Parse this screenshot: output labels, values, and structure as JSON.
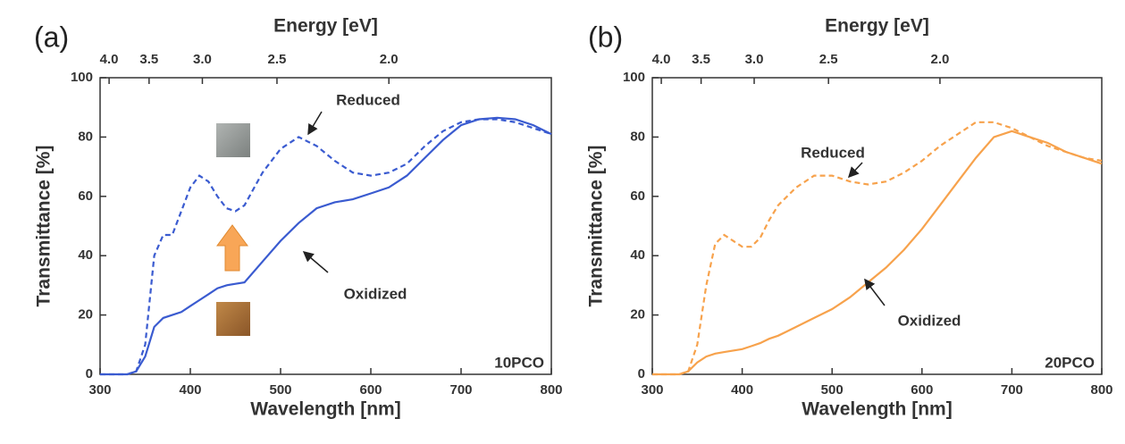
{
  "chart_data": [
    {
      "type": "line",
      "label": "(a)",
      "x_label": "Wavelength [nm]",
      "y_label": "Transmittance [%]",
      "x2_label": "Energy [eV]",
      "sample": "10PCO",
      "xlim": [
        300,
        800
      ],
      "xticks": [
        300,
        400,
        500,
        600,
        700,
        800
      ],
      "ylim": [
        0,
        100
      ],
      "yticks": [
        0,
        20,
        40,
        60,
        80,
        100
      ],
      "x2ticks": [
        {
          "value": 4,
          "label": "4.0"
        },
        3.5,
        {
          "value": 3,
          "label": "3.0"
        },
        2.5,
        {
          "value": 2,
          "label": "2.0"
        }
      ],
      "x": [
        300,
        330,
        340,
        350,
        360,
        370,
        380,
        390,
        400,
        410,
        420,
        430,
        440,
        450,
        460,
        480,
        500,
        520,
        540,
        560,
        580,
        600,
        620,
        640,
        660,
        680,
        700,
        720,
        740,
        760,
        780,
        800
      ],
      "series": [
        {
          "name": "Reduced",
          "color": "#3a5bd0",
          "dash": true,
          "values": [
            0,
            0,
            1,
            10,
            40,
            47,
            47,
            55,
            63,
            67,
            65,
            60,
            56,
            55,
            57,
            68,
            76,
            80,
            77,
            72,
            68,
            67,
            68,
            71,
            77,
            82,
            85,
            86,
            86,
            85,
            83,
            81
          ]
        },
        {
          "name": "Oxidized",
          "color": "#3a5bd0",
          "dash": false,
          "values": [
            0,
            0,
            1,
            6,
            16,
            19,
            20,
            21,
            23,
            25,
            27,
            29,
            30,
            30.5,
            31,
            38,
            45,
            51,
            56,
            58,
            59,
            61,
            63,
            67,
            73,
            79,
            84,
            86,
            86.5,
            86,
            84,
            81
          ]
        }
      ]
    },
    {
      "type": "line",
      "label": "(b)",
      "x_label": "Wavelength [nm]",
      "y_label": "Transmittance [%]",
      "x2_label": "Energy [eV]",
      "sample": "20PCO",
      "xlim": [
        300,
        800
      ],
      "xticks": [
        300,
        400,
        500,
        600,
        700,
        800
      ],
      "ylim": [
        0,
        100
      ],
      "yticks": [
        0,
        20,
        40,
        60,
        80,
        100
      ],
      "x2ticks": [
        {
          "value": 4,
          "label": "4.0"
        },
        3.5,
        {
          "value": 3,
          "label": "3.0"
        },
        2.5,
        {
          "value": 2,
          "label": "2.0"
        }
      ],
      "x": [
        300,
        330,
        340,
        350,
        360,
        370,
        380,
        390,
        400,
        410,
        420,
        430,
        440,
        450,
        460,
        480,
        500,
        520,
        540,
        560,
        580,
        600,
        620,
        640,
        660,
        680,
        700,
        720,
        740,
        760,
        780,
        800
      ],
      "series": [
        {
          "name": "Reduced",
          "color": "#f7a24c",
          "dash": true,
          "values": [
            0,
            0,
            1,
            10,
            30,
            44,
            47,
            45,
            43,
            43,
            46,
            52,
            57,
            60,
            63,
            67,
            67,
            65,
            64,
            65,
            68,
            72,
            77,
            81,
            85,
            85,
            83,
            80,
            77,
            75,
            73,
            72
          ]
        },
        {
          "name": "Oxidized",
          "color": "#f7a24c",
          "dash": false,
          "values": [
            0,
            0,
            1,
            4,
            6,
            7,
            7.5,
            8,
            8.5,
            9.5,
            10.5,
            12,
            13,
            14.5,
            16,
            19,
            22,
            26,
            31,
            36,
            42,
            49,
            57,
            65,
            73,
            80,
            82,
            80,
            78,
            75,
            73,
            71
          ]
        }
      ]
    }
  ]
}
